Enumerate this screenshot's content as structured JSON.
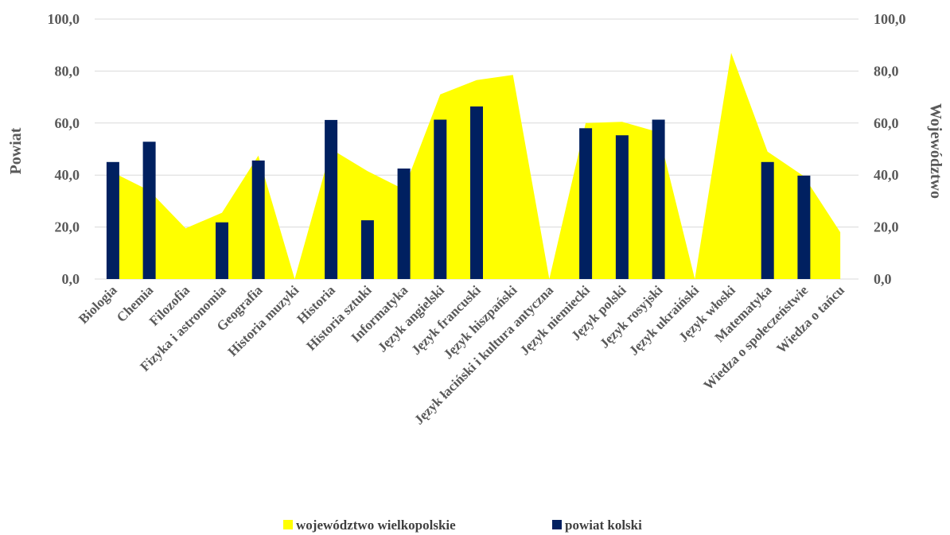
{
  "chart_data": {
    "type": "bar",
    "categories": [
      "Biologia",
      "Chemia",
      "Filozofia",
      "Fizyka i astronomia",
      "Geografia",
      "Historia muzyki",
      "Historia",
      "Historia sztuki",
      "Informatyka",
      "Język angielski",
      "Język francuski",
      "Język hiszpański",
      "Język łaciński i kultura antyczna",
      "Język niemiecki",
      "Język polski",
      "Język rosyjski",
      "Język ukraiński",
      "Język włoski",
      "Matematyka",
      "Wiedza o społeczeństwie",
      "Wiedza o tańcu"
    ],
    "series": [
      {
        "name": "województwo wielkopolskie",
        "type": "area",
        "axis": "right",
        "color": "#ffff00",
        "values": [
          41.0,
          34.0,
          19.5,
          25.5,
          47.5,
          0.0,
          50.0,
          41.5,
          34.5,
          71.0,
          76.5,
          78.5,
          0.0,
          60.0,
          60.5,
          56.5,
          0.0,
          87.0,
          49.0,
          39.5,
          18.0
        ]
      },
      {
        "name": "powiat kolski",
        "type": "bar",
        "axis": "left",
        "color": "#002060",
        "values": [
          45.0,
          52.8,
          null,
          21.8,
          45.6,
          null,
          61.2,
          22.6,
          42.5,
          61.3,
          66.4,
          null,
          null,
          58.0,
          55.3,
          61.3,
          null,
          null,
          45.0,
          39.8,
          null
        ]
      }
    ],
    "ylabel": "Powiat",
    "y2label": "Województwo",
    "ylim": [
      0,
      100
    ],
    "y2lim": [
      0,
      100
    ],
    "yticks": [
      "0,0",
      "20,0",
      "40,0",
      "60,0",
      "80,0",
      "100,0"
    ],
    "y2ticks": [
      "0,0",
      "20,0",
      "40,0",
      "60,0",
      "80,0",
      "100,0"
    ],
    "grid": true,
    "legend": "bottom"
  }
}
